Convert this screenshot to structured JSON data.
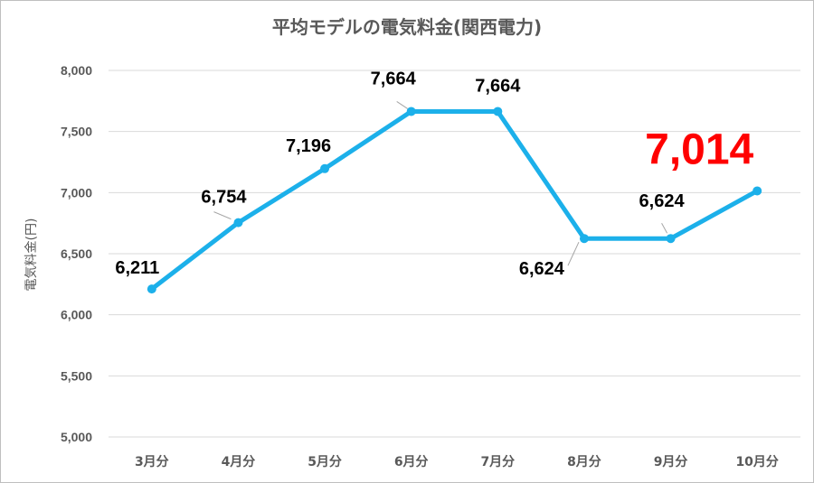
{
  "chart_data": {
    "type": "line",
    "title": "平均モデルの電気料金(関西電力)",
    "xlabel": "",
    "ylabel": "電気料金(円)",
    "categories": [
      "3月分",
      "4月分",
      "5月分",
      "6月分",
      "7月分",
      "8月分",
      "9月分",
      "10月分"
    ],
    "series": [
      {
        "values": [
          6211,
          6754,
          7196,
          7664,
          7664,
          6624,
          6624,
          7014
        ]
      }
    ],
    "data_labels": [
      "6,211",
      "6,754",
      "7,196",
      "7,664",
      "7,664",
      "6,624",
      "6,624",
      "7,014"
    ],
    "ylim": [
      5000,
      8000
    ],
    "yticks": [
      5000,
      5500,
      6000,
      6500,
      7000,
      7500,
      8000
    ],
    "ytick_labels": [
      "5,000",
      "5,500",
      "6,000",
      "6,500",
      "7,000",
      "7,500",
      "8,000"
    ],
    "grid": true,
    "highlight_label_index": 7,
    "colors": {
      "line": "#1cb0ea",
      "grid": "#d9d9d9",
      "highlight": "#ff0000",
      "text": "#595959"
    }
  }
}
